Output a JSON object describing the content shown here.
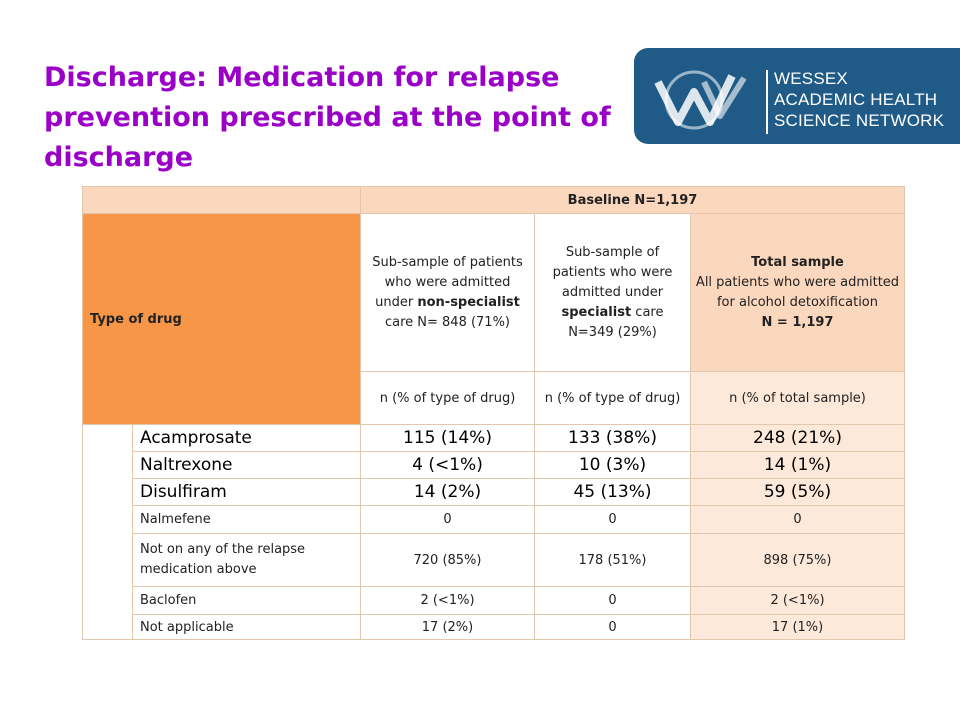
{
  "slide": {
    "title": "Discharge: Medication for relapse prevention prescribed at the point of discharge"
  },
  "logo": {
    "line1": "WESSEX",
    "line2": "ACADEMIC HEALTH",
    "line3": "SCIENCE NETWORK",
    "background": "#1f5b86"
  },
  "table": {
    "baseline": "Baseline N=1,197",
    "type_of_drug": "Type of drug",
    "col1": {
      "text_a": "Sub-sample of patients who were admitted under ",
      "bold": "non-specialist",
      "text_b": " care N= 848 (71%)"
    },
    "col2": {
      "text_a": "Sub-sample of patients who were admitted under ",
      "bold": "specialist",
      "text_b": " care N=349 (29%)"
    },
    "col3": {
      "heading": "Total sample",
      "text": "All patients who were admitted for alcohol detoxification",
      "n": "N = 1,197"
    },
    "subheaders": [
      "n (% of type of drug)",
      "n (% of type of drug)",
      "n (% of total sample)"
    ],
    "rows": [
      {
        "drug": "Acamprosate",
        "c1": "115 (14%)",
        "c2": "133 (38%)",
        "c3": "248 (21%)"
      },
      {
        "drug": "Naltrexone",
        "c1": "4 (<1%)",
        "c2": "10 (3%)",
        "c3": "14 (1%)"
      },
      {
        "drug": "Disulfiram",
        "c1": "14 (2%)",
        "c2": "45 (13%)",
        "c3": "59 (5%)"
      },
      {
        "drug": "Nalmefene",
        "c1": "0",
        "c2": "0",
        "c3": "0"
      },
      {
        "drug": "Not on any of the relapse medication above",
        "c1": "720 (85%)",
        "c2": "178 (51%)",
        "c3": "898 (75%)"
      },
      {
        "drug": "Baclofen",
        "c1": "2 (<1%)",
        "c2": "0",
        "c3": "2 (<1%)"
      },
      {
        "drug": "Not applicable",
        "c1": "17 (2%)",
        "c2": "0",
        "c3": "17 (1%)"
      }
    ]
  },
  "colors": {
    "title": "#9b00c8",
    "header_light": "#fbd7bd",
    "header_orange": "#f79646",
    "total_pale": "#fde9d9"
  }
}
